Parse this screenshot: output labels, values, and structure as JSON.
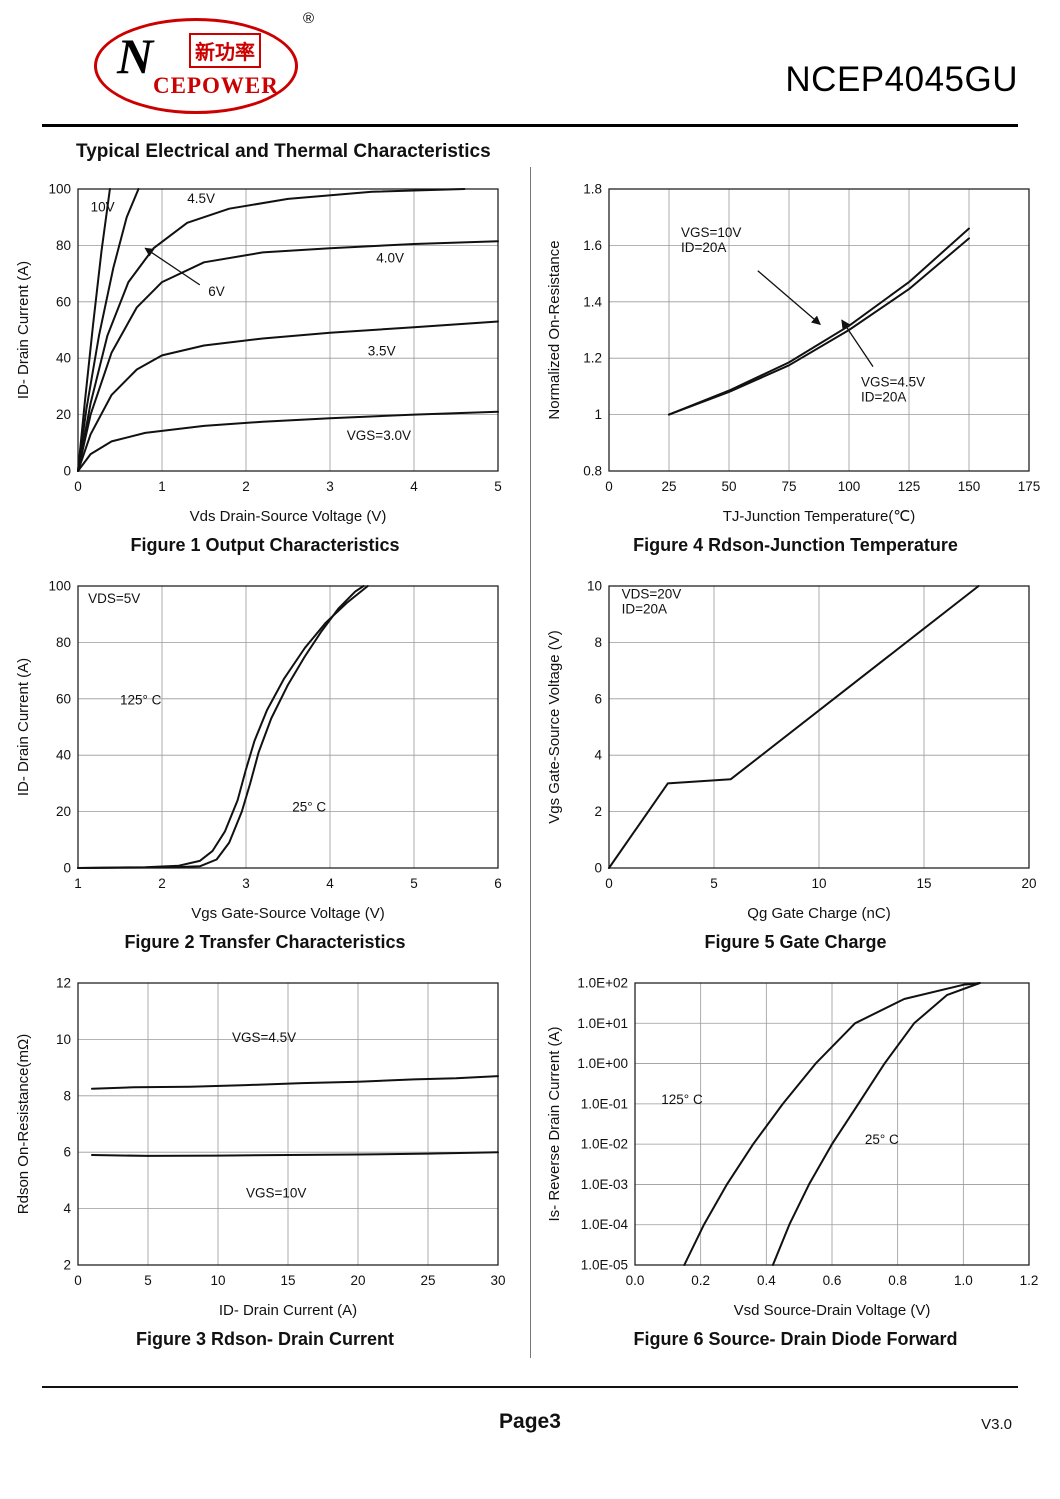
{
  "header": {
    "logo": {
      "brand_cn": "新功率",
      "brand_en": "CEPOWER",
      "n_mark": "N",
      "registered": "®"
    },
    "part_number": "NCEP4045GU"
  },
  "section_title": "Typical Electrical and Thermal Characteristics",
  "footer": {
    "page_label": "Page",
    "page_number": "3",
    "version": "V3.0"
  },
  "chart_data": [
    {
      "name": "figure1-output-characteristics",
      "type": "line",
      "caption": "Figure 1 Output Characteristics",
      "xlabel": "Vds Drain-Source Voltage (V)",
      "ylabel": "ID- Drain Current (A)",
      "xlim": [
        0,
        5
      ],
      "ylim": [
        0,
        100
      ],
      "xticks": [
        0,
        1,
        2,
        3,
        4,
        5
      ],
      "yticks": [
        0,
        20,
        40,
        60,
        80,
        100
      ],
      "series": [
        {
          "name": "Vgs=10V",
          "points": [
            [
              0,
              0
            ],
            [
              0.08,
              24
            ],
            [
              0.18,
              52
            ],
            [
              0.28,
              78
            ],
            [
              0.38,
              100
            ]
          ]
        },
        {
          "name": "Vgs=6V",
          "points": [
            [
              0,
              0
            ],
            [
              0.1,
              22
            ],
            [
              0.25,
              48
            ],
            [
              0.42,
              72
            ],
            [
              0.58,
              90
            ],
            [
              0.72,
              100
            ]
          ]
        },
        {
          "name": "Vgs=4.5V",
          "points": [
            [
              0,
              0
            ],
            [
              0.15,
              24
            ],
            [
              0.35,
              48
            ],
            [
              0.6,
              67
            ],
            [
              0.9,
              79
            ],
            [
              1.3,
              88
            ],
            [
              1.8,
              93
            ],
            [
              2.5,
              96.5
            ],
            [
              3.5,
              99
            ],
            [
              4.6,
              100
            ]
          ]
        },
        {
          "name": "Vgs=4.0V",
          "points": [
            [
              0,
              0
            ],
            [
              0.15,
              20
            ],
            [
              0.4,
              42
            ],
            [
              0.7,
              58
            ],
            [
              1.0,
              67
            ],
            [
              1.5,
              74
            ],
            [
              2.2,
              77.5
            ],
            [
              3.0,
              79
            ],
            [
              4.0,
              80.5
            ],
            [
              5,
              81.5
            ]
          ]
        },
        {
          "name": "Vgs=3.5V",
          "points": [
            [
              0,
              0
            ],
            [
              0.15,
              13
            ],
            [
              0.4,
              27
            ],
            [
              0.7,
              36
            ],
            [
              1.0,
              41
            ],
            [
              1.5,
              44.5
            ],
            [
              2.2,
              47
            ],
            [
              3.0,
              49
            ],
            [
              4.0,
              51
            ],
            [
              5,
              53
            ]
          ]
        },
        {
          "name": "Vgs=3.0V",
          "points": [
            [
              0,
              0
            ],
            [
              0.15,
              6
            ],
            [
              0.4,
              10.5
            ],
            [
              0.8,
              13.5
            ],
            [
              1.5,
              16
            ],
            [
              2.2,
              17.5
            ],
            [
              3.0,
              18.7
            ],
            [
              4.0,
              20
            ],
            [
              5,
              21
            ]
          ]
        }
      ],
      "annotations": [
        {
          "text": "10V",
          "x": 0.15,
          "y": 92
        },
        {
          "text": "4.5V",
          "x": 1.3,
          "y": 95
        },
        {
          "text": "6V",
          "x": 1.55,
          "y": 62,
          "arrow": {
            "from": [
              1.45,
              66
            ],
            "to": [
              0.8,
              79
            ]
          }
        },
        {
          "text": "4.0V",
          "x": 3.55,
          "y": 74
        },
        {
          "text": "3.5V",
          "x": 3.45,
          "y": 41
        },
        {
          "text": "VGS=3.0V",
          "x": 3.2,
          "y": 11
        }
      ]
    },
    {
      "name": "figure4-rdson-junction-temperature",
      "type": "line",
      "caption": "Figure 4 Rdson-Junction Temperature",
      "xlabel": "TJ-Junction Temperature(℃)",
      "ylabel": "Normalized On-Resistance",
      "xlim": [
        0,
        175
      ],
      "ylim": [
        0.8,
        1.8
      ],
      "xticks": [
        0,
        25,
        50,
        75,
        100,
        125,
        150,
        175
      ],
      "yticks": [
        0.8,
        1,
        1.2,
        1.4,
        1.6,
        1.8
      ],
      "series": [
        {
          "name": "Vgs=10V Id=20A",
          "points": [
            [
              25,
              1.0
            ],
            [
              50,
              1.085
            ],
            [
              75,
              1.185
            ],
            [
              100,
              1.315
            ],
            [
              125,
              1.47
            ],
            [
              150,
              1.66
            ]
          ]
        },
        {
          "name": "Vgs=4.5V Id=20A",
          "points": [
            [
              25,
              1.0
            ],
            [
              50,
              1.08
            ],
            [
              75,
              1.175
            ],
            [
              100,
              1.3
            ],
            [
              125,
              1.445
            ],
            [
              150,
              1.625
            ]
          ]
        }
      ],
      "annotations": [
        {
          "text": "VGS=10V\nID=20A",
          "x": 30,
          "y": 1.63,
          "arrow": {
            "from": [
              62,
              1.51
            ],
            "to": [
              88,
              1.32
            ]
          }
        },
        {
          "text": "VGS=4.5V\nID=20A",
          "x": 105,
          "y": 1.1,
          "arrow": {
            "from": [
              110,
              1.17
            ],
            "to": [
              97,
              1.335
            ]
          }
        }
      ]
    },
    {
      "name": "figure2-transfer-characteristics",
      "type": "line",
      "caption": "Figure 2 Transfer Characteristics",
      "xlabel": "Vgs Gate-Source Voltage (V)",
      "ylabel": "ID- Drain Current (A)",
      "xlim": [
        1,
        6
      ],
      "ylim": [
        0,
        100
      ],
      "xticks": [
        1,
        2,
        3,
        4,
        5,
        6
      ],
      "yticks": [
        0,
        20,
        40,
        60,
        80,
        100
      ],
      "series": [
        {
          "name": "125° C",
          "points": [
            [
              1,
              0
            ],
            [
              1.8,
              0.3
            ],
            [
              2.2,
              0.8
            ],
            [
              2.45,
              2.5
            ],
            [
              2.6,
              6
            ],
            [
              2.75,
              13
            ],
            [
              2.9,
              24
            ],
            [
              3.0,
              35
            ],
            [
              3.1,
              45
            ],
            [
              3.25,
              56
            ],
            [
              3.45,
              67
            ],
            [
              3.7,
              78
            ],
            [
              3.95,
              87
            ],
            [
              4.2,
              94
            ],
            [
              4.45,
              100
            ]
          ]
        },
        {
          "name": "25° C",
          "points": [
            [
              1,
              0
            ],
            [
              2.1,
              0.2
            ],
            [
              2.45,
              0.6
            ],
            [
              2.65,
              3
            ],
            [
              2.8,
              9
            ],
            [
              2.95,
              20
            ],
            [
              3.05,
              30
            ],
            [
              3.15,
              41
            ],
            [
              3.3,
              53
            ],
            [
              3.5,
              65
            ],
            [
              3.7,
              75
            ],
            [
              3.9,
              84
            ],
            [
              4.1,
              92
            ],
            [
              4.3,
              98
            ],
            [
              4.4,
              100
            ]
          ]
        }
      ],
      "annotations": [
        {
          "text": "VDS=5V",
          "x": 1.12,
          "y": 94
        },
        {
          "text": "125° C",
          "x": 1.5,
          "y": 58
        },
        {
          "text": "25° C",
          "x": 3.55,
          "y": 20
        }
      ]
    },
    {
      "name": "figure5-gate-charge",
      "type": "line",
      "caption": "Figure 5 Gate Charge",
      "xlabel": "Qg Gate Charge (nC)",
      "ylabel": "Vgs Gate-Source Voltage (V)",
      "xlim": [
        0,
        20
      ],
      "ylim": [
        0,
        10
      ],
      "xticks": [
        0,
        5,
        10,
        15,
        20
      ],
      "yticks": [
        0,
        2,
        4,
        6,
        8,
        10
      ],
      "series": [
        {
          "name": "gate-charge",
          "points": [
            [
              0,
              0
            ],
            [
              2.8,
              3.0
            ],
            [
              5.8,
              3.15
            ],
            [
              17.6,
              10
            ]
          ]
        }
      ],
      "annotations": [
        {
          "text": "VDS=20V\nID=20A",
          "x": 0.6,
          "y": 9.55
        }
      ]
    },
    {
      "name": "figure3-rdson-drain-current",
      "type": "line",
      "caption": "Figure 3 Rdson- Drain Current",
      "xlabel": "ID- Drain Current (A)",
      "ylabel": "Rdson On-Resistance(mΩ)",
      "xlim": [
        0,
        30
      ],
      "ylim": [
        2,
        12
      ],
      "xticks": [
        0,
        5,
        10,
        15,
        20,
        25,
        30
      ],
      "yticks": [
        2,
        4,
        6,
        8,
        10,
        12
      ],
      "series": [
        {
          "name": "Vgs=4.5V",
          "points": [
            [
              1,
              8.25
            ],
            [
              4,
              8.3
            ],
            [
              8,
              8.32
            ],
            [
              12,
              8.38
            ],
            [
              16,
              8.45
            ],
            [
              20,
              8.5
            ],
            [
              24,
              8.58
            ],
            [
              27,
              8.62
            ],
            [
              30,
              8.7
            ]
          ]
        },
        {
          "name": "Vgs=10V",
          "points": [
            [
              1,
              5.9
            ],
            [
              5,
              5.87
            ],
            [
              10,
              5.88
            ],
            [
              15,
              5.9
            ],
            [
              20,
              5.92
            ],
            [
              25,
              5.95
            ],
            [
              30,
              6.0
            ]
          ]
        }
      ],
      "annotations": [
        {
          "text": "VGS=4.5V",
          "x": 11,
          "y": 9.9
        },
        {
          "text": "VGS=10V",
          "x": 12,
          "y": 4.4
        }
      ]
    },
    {
      "name": "figure6-source-drain-diode-forward",
      "type": "line",
      "ylog": true,
      "caption": "Figure 6 Source- Drain Diode Forward",
      "xlabel": "Vsd Source-Drain Voltage (V)",
      "ylabel": "Is- Reverse Drain Current (A)",
      "xlim": [
        0,
        1.2
      ],
      "ylim": [
        1e-05,
        100.0
      ],
      "xticks": [
        0,
        0.2,
        0.4,
        0.6,
        0.8,
        1.0,
        1.2
      ],
      "xtick_labels": [
        "0.0",
        "0.2",
        "0.4",
        "0.6",
        "0.8",
        "1.0",
        "1.2"
      ],
      "yticks": [
        1e-05,
        0.0001,
        0.001,
        0.01,
        0.1,
        1,
        10,
        100
      ],
      "ytick_labels": [
        "1.0E-05",
        "1.0E-04",
        "1.0E-03",
        "1.0E-02",
        "1.0E-01",
        "1.0E+00",
        "1.0E+01",
        "1.0E+02"
      ],
      "left_margin": 90,
      "series": [
        {
          "name": "125° C",
          "points": [
            [
              0.15,
              1e-05
            ],
            [
              0.21,
              0.0001
            ],
            [
              0.28,
              0.001
            ],
            [
              0.36,
              0.01
            ],
            [
              0.45,
              0.1
            ],
            [
              0.55,
              1
            ],
            [
              0.67,
              10
            ],
            [
              0.82,
              40
            ],
            [
              1.0,
              90
            ],
            [
              1.05,
              100
            ]
          ]
        },
        {
          "name": "25° C",
          "points": [
            [
              0.42,
              1e-05
            ],
            [
              0.47,
              0.0001
            ],
            [
              0.53,
              0.001
            ],
            [
              0.6,
              0.01
            ],
            [
              0.68,
              0.1
            ],
            [
              0.76,
              1
            ],
            [
              0.85,
              10
            ],
            [
              0.95,
              50
            ],
            [
              1.05,
              100
            ]
          ]
        }
      ],
      "annotations": [
        {
          "text": "125° C",
          "x": 0.08,
          "y": 0.1
        },
        {
          "text": "25° C",
          "x": 0.7,
          "y": 0.01
        }
      ]
    }
  ]
}
